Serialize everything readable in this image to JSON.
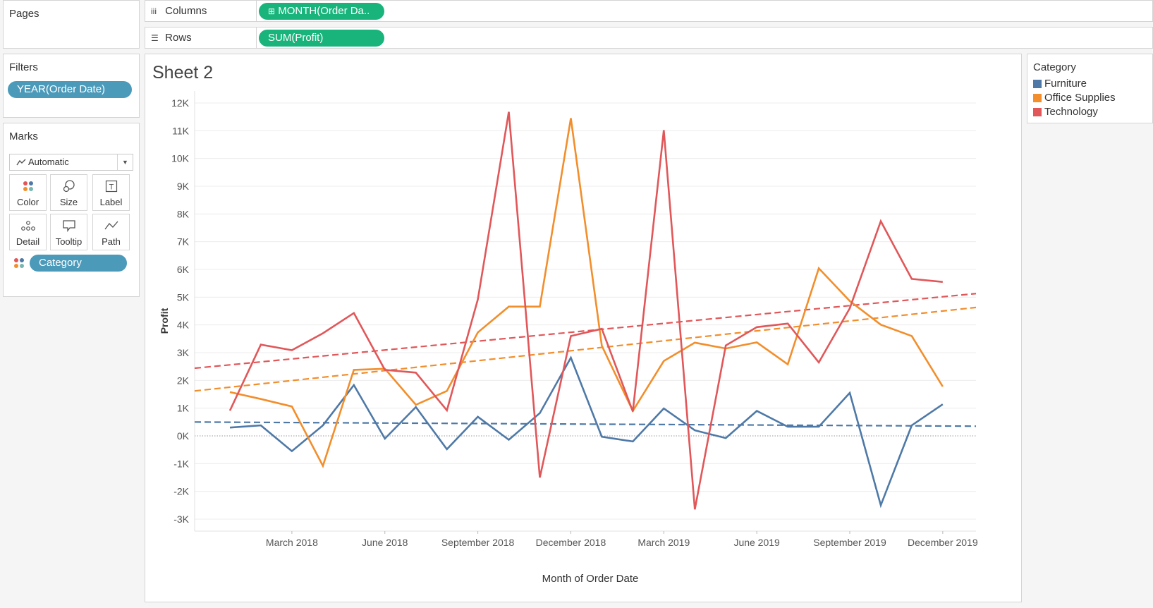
{
  "left_panel": {
    "pages_title": "Pages",
    "filters_title": "Filters",
    "filter_pill": "YEAR(Order Date)",
    "marks_title": "Marks",
    "mark_type": "Automatic",
    "mark_buttons": [
      "Color",
      "Size",
      "Label",
      "Detail",
      "Tooltip",
      "Path"
    ],
    "marks_pill": "Category",
    "marks_pill_icon": "color-dots-icon"
  },
  "shelves": {
    "columns_label": "Columns",
    "columns_pill": "MONTH(Order Da..",
    "rows_label": "Rows",
    "rows_pill": "SUM(Profit)"
  },
  "sheet": {
    "title": "Sheet 2"
  },
  "legend": {
    "title": "Category",
    "items": [
      {
        "label": "Furniture",
        "color": "#4e79a7"
      },
      {
        "label": "Office Supplies",
        "color": "#f28e2b"
      },
      {
        "label": "Technology",
        "color": "#e15759"
      }
    ]
  },
  "chart_data": {
    "type": "line",
    "xlabel": "Month of Order Date",
    "ylabel": "Profit",
    "ylim": [
      -3300,
      12400
    ],
    "y_ticks": [
      -3000,
      -2000,
      -1000,
      0,
      1000,
      2000,
      3000,
      4000,
      5000,
      6000,
      7000,
      8000,
      9000,
      10000,
      11000,
      12000
    ],
    "y_tick_labels": [
      "-3K",
      "-2K",
      "-1K",
      "0K",
      "1K",
      "2K",
      "3K",
      "4K",
      "5K",
      "6K",
      "7K",
      "8K",
      "9K",
      "10K",
      "11K",
      "12K"
    ],
    "x": [
      "2018-01",
      "2018-02",
      "2018-03",
      "2018-04",
      "2018-05",
      "2018-06",
      "2018-07",
      "2018-08",
      "2018-09",
      "2018-10",
      "2018-11",
      "2018-12",
      "2019-01",
      "2019-02",
      "2019-03",
      "2019-04",
      "2019-05",
      "2019-06",
      "2019-07",
      "2019-08",
      "2019-09",
      "2019-10",
      "2019-11",
      "2019-12"
    ],
    "x_tick_labels": [
      {
        "at": "2018-03",
        "label": "March 2018"
      },
      {
        "at": "2018-06",
        "label": "June 2018"
      },
      {
        "at": "2018-09",
        "label": "September 2018"
      },
      {
        "at": "2018-12",
        "label": "December 2018"
      },
      {
        "at": "2019-03",
        "label": "March 2019"
      },
      {
        "at": "2019-06",
        "label": "June 2019"
      },
      {
        "at": "2019-09",
        "label": "September 2019"
      },
      {
        "at": "2019-12",
        "label": "December 2019"
      }
    ],
    "series": [
      {
        "name": "Furniture",
        "color": "#4e79a7",
        "values": [
          300,
          380,
          -550,
          380,
          1830,
          -100,
          1040,
          -480,
          690,
          -140,
          820,
          2820,
          -30,
          -200,
          990,
          200,
          -80,
          900,
          330,
          330,
          1550,
          -2500,
          380,
          1140
        ],
        "trend": [
          500,
          350
        ]
      },
      {
        "name": "Office Supplies",
        "color": "#f28e2b",
        "values": [
          1580,
          1330,
          1060,
          -1080,
          2380,
          2420,
          1120,
          1620,
          3730,
          4660,
          4660,
          11450,
          3250,
          900,
          2700,
          3360,
          3150,
          3370,
          2580,
          6040,
          4860,
          4010,
          3600,
          1780
        ],
        "trend": [
          1620,
          4630
        ]
      },
      {
        "name": "Technology",
        "color": "#e15759",
        "values": [
          910,
          3290,
          3090,
          3700,
          4430,
          2380,
          2280,
          920,
          4920,
          11680,
          -1500,
          3600,
          3860,
          880,
          11020,
          -2650,
          3260,
          3920,
          4050,
          2650,
          4600,
          7740,
          5660,
          5550
        ],
        "trend": [
          2440,
          5130
        ]
      }
    ],
    "trend_lines": "dashed linear trend per series",
    "zero_line": "dotted",
    "grid": "horizontal",
    "legend_position": "right"
  }
}
